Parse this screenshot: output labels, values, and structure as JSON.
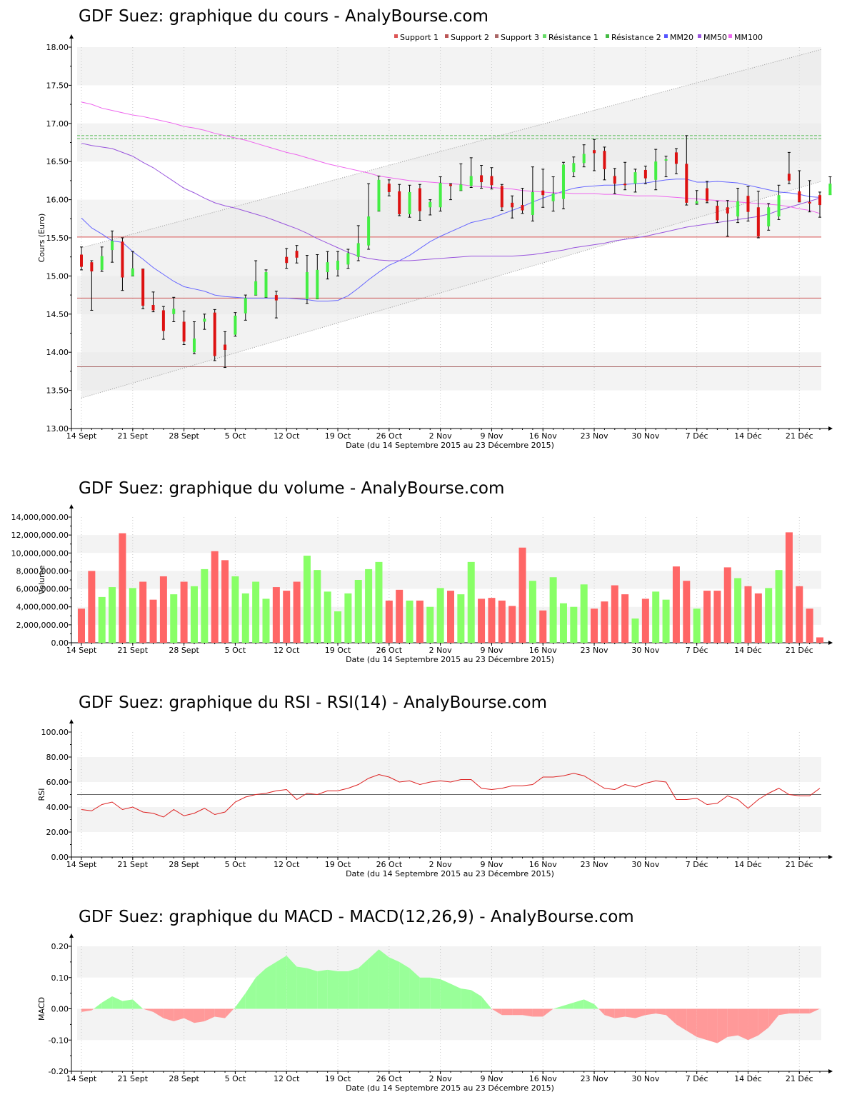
{
  "charts": [
    {
      "title": "GDF Suez: graphique du cours - AnalyBourse.com"
    },
    {
      "title": "GDF Suez: graphique du volume - AnalyBourse.com"
    },
    {
      "title": "GDF Suez: graphique du RSI - RSI(14) - AnalyBourse.com"
    },
    {
      "title": "GDF Suez: graphique du MACD - MACD(12,26,9) - AnalyBourse.com"
    }
  ],
  "colors": {
    "up": "#44ee44",
    "down": "#dd1111",
    "vol_up": "#88ff66",
    "vol_down": "#ff6666",
    "mm20": "#6666ff",
    "mm50": "#9955dd",
    "mm100": "#ee66ee",
    "support": "#cc5555",
    "resistance": "#55bb55",
    "rsi": "#dd2222",
    "macd_pos": "#99ff99",
    "macd_neg": "#ff9999"
  },
  "chart_data": [
    {
      "type": "candlestick",
      "title": "GDF Suez: graphique du cours - AnalyBourse.com",
      "ylabel": "Cours (Euro)",
      "xlabel": "Date (du 14 Septembre 2015 au 23 Décembre 2015)",
      "ylim": [
        13.0,
        18.0
      ],
      "yticks": [
        "13.00",
        "13.50",
        "14.00",
        "14.50",
        "15.00",
        "15.50",
        "16.00",
        "16.50",
        "17.00",
        "17.50",
        "18.00"
      ],
      "xticks": [
        "14 Sept",
        "21 Sept",
        "28 Sept",
        "5 Oct",
        "12 Oct",
        "19 Oct",
        "26 Oct",
        "2 Nov",
        "9 Nov",
        "16 Nov",
        "23 Nov",
        "30 Nov",
        "7 Déc",
        "14 Déc",
        "21 Déc"
      ],
      "legend": [
        "Support 1",
        "Support 2",
        "Support 3",
        "Résistance 1",
        "Résistance 2",
        "MM20",
        "MM50",
        "MM100"
      ],
      "supports": [
        15.51,
        14.71,
        13.81
      ],
      "resistances": [
        16.84,
        16.8
      ],
      "candles": [
        {
          "o": 15.28,
          "h": 15.38,
          "l": 15.08,
          "c": 15.12
        },
        {
          "o": 15.18,
          "h": 15.2,
          "l": 14.55,
          "c": 15.06
        },
        {
          "o": 15.08,
          "h": 15.38,
          "l": 15.06,
          "c": 15.26
        },
        {
          "o": 15.34,
          "h": 15.59,
          "l": 15.18,
          "c": 15.46
        },
        {
          "o": 15.45,
          "h": 15.5,
          "l": 14.81,
          "c": 14.98
        },
        {
          "o": 15.0,
          "h": 15.32,
          "l": 15.0,
          "c": 15.1
        },
        {
          "o": 15.09,
          "h": 15.09,
          "l": 14.57,
          "c": 14.61
        },
        {
          "o": 14.62,
          "h": 14.79,
          "l": 14.53,
          "c": 14.55
        },
        {
          "o": 14.55,
          "h": 14.6,
          "l": 14.17,
          "c": 14.28
        },
        {
          "o": 14.5,
          "h": 14.72,
          "l": 14.4,
          "c": 14.57
        },
        {
          "o": 14.4,
          "h": 14.54,
          "l": 14.1,
          "c": 14.14
        },
        {
          "o": 14.0,
          "h": 14.4,
          "l": 13.98,
          "c": 14.18
        },
        {
          "o": 14.4,
          "h": 14.5,
          "l": 14.3,
          "c": 14.44
        },
        {
          "o": 14.52,
          "h": 14.56,
          "l": 13.89,
          "c": 13.95
        },
        {
          "o": 14.1,
          "h": 14.27,
          "l": 13.8,
          "c": 14.03
        },
        {
          "o": 14.23,
          "h": 14.52,
          "l": 14.21,
          "c": 14.48
        },
        {
          "o": 14.51,
          "h": 14.75,
          "l": 14.42,
          "c": 14.71
        },
        {
          "o": 14.75,
          "h": 15.2,
          "l": 14.75,
          "c": 14.93
        },
        {
          "o": 14.72,
          "h": 15.08,
          "l": 14.72,
          "c": 15.05
        },
        {
          "o": 14.75,
          "h": 14.8,
          "l": 14.45,
          "c": 14.68
        },
        {
          "o": 15.25,
          "h": 15.36,
          "l": 15.1,
          "c": 15.17
        },
        {
          "o": 15.33,
          "h": 15.4,
          "l": 15.17,
          "c": 15.24
        },
        {
          "o": 14.7,
          "h": 15.27,
          "l": 14.64,
          "c": 15.05
        },
        {
          "o": 14.7,
          "h": 15.28,
          "l": 14.7,
          "c": 15.08
        },
        {
          "o": 15.05,
          "h": 15.32,
          "l": 14.96,
          "c": 15.18
        },
        {
          "o": 15.08,
          "h": 15.32,
          "l": 15.0,
          "c": 15.2
        },
        {
          "o": 15.15,
          "h": 15.35,
          "l": 15.1,
          "c": 15.3
        },
        {
          "o": 15.25,
          "h": 15.66,
          "l": 15.2,
          "c": 15.43
        },
        {
          "o": 15.4,
          "h": 16.21,
          "l": 15.35,
          "c": 15.78
        },
        {
          "o": 15.85,
          "h": 16.31,
          "l": 15.85,
          "c": 16.26
        },
        {
          "o": 16.21,
          "h": 16.26,
          "l": 16.05,
          "c": 16.1
        },
        {
          "o": 16.11,
          "h": 16.2,
          "l": 15.79,
          "c": 15.81
        },
        {
          "o": 15.81,
          "h": 16.19,
          "l": 15.77,
          "c": 16.1
        },
        {
          "o": 16.15,
          "h": 16.2,
          "l": 15.73,
          "c": 15.85
        },
        {
          "o": 15.9,
          "h": 16.0,
          "l": 15.8,
          "c": 15.97
        },
        {
          "o": 15.9,
          "h": 16.3,
          "l": 15.85,
          "c": 16.22
        },
        {
          "o": 16.2,
          "h": 16.21,
          "l": 16.0,
          "c": 16.18
        },
        {
          "o": 16.12,
          "h": 16.47,
          "l": 16.12,
          "c": 16.2
        },
        {
          "o": 16.18,
          "h": 16.55,
          "l": 16.16,
          "c": 16.31
        },
        {
          "o": 16.32,
          "h": 16.45,
          "l": 16.15,
          "c": 16.23
        },
        {
          "o": 16.31,
          "h": 16.42,
          "l": 16.14,
          "c": 16.19
        },
        {
          "o": 16.18,
          "h": 16.2,
          "l": 15.86,
          "c": 15.9
        },
        {
          "o": 15.96,
          "h": 16.05,
          "l": 15.76,
          "c": 15.9
        },
        {
          "o": 15.93,
          "h": 16.15,
          "l": 15.82,
          "c": 15.86
        },
        {
          "o": 15.8,
          "h": 16.43,
          "l": 15.72,
          "c": 16.1
        },
        {
          "o": 16.12,
          "h": 16.4,
          "l": 15.9,
          "c": 16.06
        },
        {
          "o": 15.98,
          "h": 16.3,
          "l": 15.85,
          "c": 16.08
        },
        {
          "o": 16.01,
          "h": 16.49,
          "l": 15.88,
          "c": 16.46
        },
        {
          "o": 16.36,
          "h": 16.56,
          "l": 16.3,
          "c": 16.48
        },
        {
          "o": 16.48,
          "h": 16.72,
          "l": 16.43,
          "c": 16.6
        },
        {
          "o": 16.65,
          "h": 16.79,
          "l": 16.38,
          "c": 16.61
        },
        {
          "o": 16.64,
          "h": 16.69,
          "l": 16.26,
          "c": 16.4
        },
        {
          "o": 16.31,
          "h": 16.41,
          "l": 16.08,
          "c": 16.21
        },
        {
          "o": 16.21,
          "h": 16.49,
          "l": 16.13,
          "c": 16.19
        },
        {
          "o": 16.21,
          "h": 16.4,
          "l": 16.1,
          "c": 16.36
        },
        {
          "o": 16.39,
          "h": 16.44,
          "l": 16.21,
          "c": 16.28
        },
        {
          "o": 16.26,
          "h": 16.66,
          "l": 16.13,
          "c": 16.5
        },
        {
          "o": 16.53,
          "h": 16.57,
          "l": 16.3,
          "c": 16.53
        },
        {
          "o": 16.62,
          "h": 16.67,
          "l": 16.34,
          "c": 16.47
        },
        {
          "o": 16.47,
          "h": 16.84,
          "l": 15.93,
          "c": 15.96
        },
        {
          "o": 15.95,
          "h": 16.12,
          "l": 15.94,
          "c": 15.98
        },
        {
          "o": 16.15,
          "h": 16.24,
          "l": 15.96,
          "c": 15.98
        },
        {
          "o": 15.92,
          "h": 15.98,
          "l": 15.7,
          "c": 15.73
        },
        {
          "o": 15.9,
          "h": 15.99,
          "l": 15.52,
          "c": 15.82
        },
        {
          "o": 15.78,
          "h": 16.15,
          "l": 15.7,
          "c": 15.98
        },
        {
          "o": 16.05,
          "h": 16.17,
          "l": 15.72,
          "c": 15.84
        },
        {
          "o": 15.9,
          "h": 16.11,
          "l": 15.5,
          "c": 15.52
        },
        {
          "o": 15.65,
          "h": 15.95,
          "l": 15.6,
          "c": 15.9
        },
        {
          "o": 15.78,
          "h": 16.19,
          "l": 15.74,
          "c": 16.06
        },
        {
          "o": 16.34,
          "h": 16.62,
          "l": 16.21,
          "c": 16.25
        },
        {
          "o": 16.11,
          "h": 16.38,
          "l": 15.97,
          "c": 15.97
        },
        {
          "o": 15.97,
          "h": 16.25,
          "l": 15.84,
          "c": 15.95
        },
        {
          "o": 16.06,
          "h": 16.1,
          "l": 15.77,
          "c": 15.93
        },
        {
          "o": 16.06,
          "h": 16.3,
          "l": 16.07,
          "c": 16.21
        }
      ],
      "mm20": [
        15.76,
        15.63,
        15.55,
        15.46,
        15.44,
        15.32,
        15.22,
        15.11,
        15.02,
        14.93,
        14.86,
        14.83,
        14.8,
        14.75,
        14.73,
        14.72,
        14.71,
        14.71,
        14.71,
        14.71,
        14.71,
        14.7,
        14.69,
        14.67,
        14.67,
        14.68,
        14.74,
        14.84,
        14.95,
        15.05,
        15.14,
        15.2,
        15.27,
        15.36,
        15.45,
        15.52,
        15.58,
        15.64,
        15.7,
        15.73,
        15.76,
        15.81,
        15.86,
        15.91,
        15.97,
        16.02,
        16.07,
        16.11,
        16.15,
        16.17,
        16.18,
        16.19,
        16.19,
        16.2,
        16.21,
        16.22,
        16.24,
        16.26,
        16.27,
        16.27,
        16.23,
        16.23,
        16.24,
        16.23,
        16.22,
        16.19,
        16.16,
        16.13,
        16.1,
        16.09,
        16.07,
        16.04,
        16.03
      ],
      "mm50": [
        16.74,
        16.71,
        16.69,
        16.67,
        16.62,
        16.57,
        16.49,
        16.42,
        16.33,
        16.24,
        16.15,
        16.09,
        16.02,
        15.96,
        15.92,
        15.89,
        15.85,
        15.81,
        15.77,
        15.72,
        15.67,
        15.62,
        15.56,
        15.49,
        15.43,
        15.37,
        15.31,
        15.26,
        15.23,
        15.21,
        15.2,
        15.2,
        15.2,
        15.21,
        15.22,
        15.23,
        15.24,
        15.25,
        15.26,
        15.26,
        15.26,
        15.26,
        15.26,
        15.27,
        15.28,
        15.3,
        15.32,
        15.34,
        15.37,
        15.39,
        15.41,
        15.43,
        15.46,
        15.48,
        15.5,
        15.52,
        15.55,
        15.58,
        15.61,
        15.64,
        15.66,
        15.68,
        15.7,
        15.72,
        15.74,
        15.76,
        15.78,
        15.81,
        15.86,
        15.9,
        15.94,
        15.98,
        16.02
      ],
      "mm100": [
        17.28,
        17.25,
        17.2,
        17.17,
        17.14,
        17.11,
        17.09,
        17.06,
        17.03,
        17.0,
        16.96,
        16.94,
        16.91,
        16.87,
        16.84,
        16.81,
        16.78,
        16.74,
        16.7,
        16.66,
        16.62,
        16.59,
        16.55,
        16.51,
        16.47,
        16.44,
        16.41,
        16.38,
        16.35,
        16.31,
        16.29,
        16.27,
        16.25,
        16.24,
        16.23,
        16.22,
        16.21,
        16.2,
        16.18,
        16.17,
        16.16,
        16.15,
        16.14,
        16.12,
        16.11,
        16.1,
        16.09,
        16.09,
        16.08,
        16.08,
        16.08,
        16.07,
        16.07,
        16.06,
        16.05,
        16.05,
        16.05,
        16.04,
        16.03,
        16.02,
        16.01,
        16.0,
        15.99,
        15.98,
        15.97,
        15.96,
        15.95,
        15.94,
        15.93,
        15.91,
        15.88,
        15.86,
        15.82
      ]
    },
    {
      "type": "bar",
      "title": "GDF Suez: graphique du volume - AnalyBourse.com",
      "ylabel": "Volume",
      "xlabel": "Date (du 14 Septembre 2015 au 23 Décembre 2015)",
      "ylim": [
        0,
        14000000
      ],
      "yticks": [
        "0.00",
        "2,000,000.00",
        "4,000,000.00",
        "6,000,000.00",
        "8,000,000.00",
        "10,000,000.00",
        "12,000,000.00",
        "14,000,000.00"
      ],
      "xticks": [
        "14 Sept",
        "21 Sept",
        "28 Sept",
        "5 Oct",
        "12 Oct",
        "19 Oct",
        "26 Oct",
        "2 Nov",
        "9 Nov",
        "16 Nov",
        "23 Nov",
        "30 Nov",
        "7 Déc",
        "14 Déc",
        "21 Déc"
      ],
      "values": [
        3800000,
        8000000,
        5100000,
        6200000,
        12200000,
        6100000,
        6800000,
        4800000,
        7400000,
        5400000,
        6800000,
        6300000,
        8200000,
        10200000,
        9200000,
        7400000,
        5500000,
        6800000,
        4900000,
        6200000,
        5800000,
        6800000,
        9700000,
        8100000,
        5700000,
        3500000,
        5500000,
        7000000,
        8200000,
        9000000,
        4700000,
        5900000,
        4700000,
        4700000,
        4000000,
        6100000,
        5800000,
        5400000,
        9000000,
        4900000,
        5000000,
        4700000,
        4100000,
        10600000,
        6900000,
        3600000,
        7300000,
        4400000,
        4000000,
        6500000,
        3800000,
        4600000,
        6400000,
        5400000,
        2700000,
        4900000,
        5700000,
        4800000,
        8500000,
        6900000,
        3800000,
        5800000,
        5800000,
        8400000,
        7200000,
        6300000,
        5500000,
        6100000,
        8100000,
        12300000,
        6300000,
        3800000,
        600000
      ]
    },
    {
      "type": "line",
      "title": "GDF Suez: graphique du RSI - RSI(14) - AnalyBourse.com",
      "ylabel": "RSI",
      "xlabel": "Date (du 14 Septembre 2015 au 23 Décembre 2015)",
      "ylim": [
        0,
        100
      ],
      "yticks": [
        "0.00",
        "20.00",
        "40.00",
        "60.00",
        "80.00",
        "100.00"
      ],
      "xticks": [
        "14 Sept",
        "21 Sept",
        "28 Sept",
        "5 Oct",
        "12 Oct",
        "19 Oct",
        "26 Oct",
        "2 Nov",
        "9 Nov",
        "16 Nov",
        "23 Nov",
        "30 Nov",
        "7 Déc",
        "14 Déc",
        "21 Déc"
      ],
      "reference": 50,
      "values": [
        38,
        37,
        42,
        44,
        38,
        40,
        36,
        35,
        32,
        38,
        33,
        35,
        39,
        34,
        36,
        44,
        48,
        50,
        51,
        53,
        54,
        46,
        51,
        50,
        53,
        53,
        55,
        58,
        63,
        66,
        64,
        60,
        61,
        58,
        60,
        61,
        60,
        62,
        62,
        55,
        54,
        55,
        57,
        57,
        58,
        64,
        64,
        65,
        67,
        65,
        60,
        55,
        54,
        58,
        56,
        59,
        61,
        60,
        46,
        46,
        47,
        42,
        43,
        49,
        46,
        39,
        46,
        51,
        55,
        50,
        49,
        49,
        55
      ]
    },
    {
      "type": "area",
      "title": "GDF Suez: graphique du MACD - MACD(12,26,9) - AnalyBourse.com",
      "ylabel": "MACD",
      "xlabel": "Date (du 14 Septembre 2015 au 23 Décembre 2015)",
      "ylim": [
        -0.2,
        0.2
      ],
      "yticks": [
        "-0.20",
        "-0.10",
        "0.00",
        "0.10",
        "0.20"
      ],
      "xticks": [
        "14 Sept",
        "21 Sept",
        "28 Sept",
        "5 Oct",
        "12 Oct",
        "19 Oct",
        "26 Oct",
        "2 Nov",
        "9 Nov",
        "16 Nov",
        "23 Nov",
        "30 Nov",
        "7 Déc",
        "14 Déc",
        "21 Déc"
      ],
      "values": [
        -0.01,
        -0.005,
        0.02,
        0.04,
        0.025,
        0.03,
        0.0,
        -0.01,
        -0.03,
        -0.04,
        -0.03,
        -0.045,
        -0.04,
        -0.025,
        -0.03,
        0.005,
        0.05,
        0.1,
        0.13,
        0.15,
        0.17,
        0.135,
        0.13,
        0.12,
        0.125,
        0.12,
        0.12,
        0.13,
        0.16,
        0.19,
        0.165,
        0.15,
        0.13,
        0.1,
        0.1,
        0.095,
        0.08,
        0.065,
        0.06,
        0.04,
        0.0,
        -0.02,
        -0.02,
        -0.02,
        -0.025,
        -0.025,
        0.0,
        0.01,
        0.02,
        0.03,
        0.015,
        -0.02,
        -0.03,
        -0.025,
        -0.03,
        -0.02,
        -0.015,
        -0.02,
        -0.05,
        -0.07,
        -0.09,
        -0.1,
        -0.11,
        -0.09,
        -0.085,
        -0.1,
        -0.085,
        -0.06,
        -0.02,
        -0.015,
        -0.015,
        -0.015,
        0.0
      ]
    }
  ]
}
